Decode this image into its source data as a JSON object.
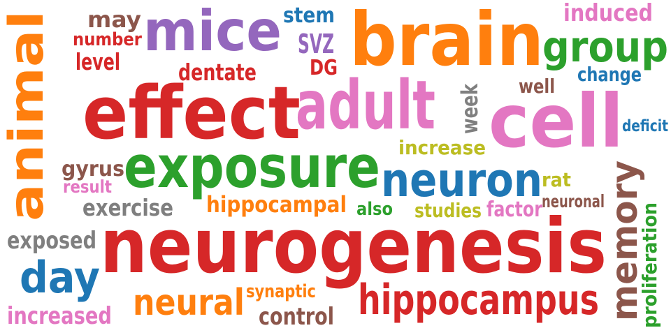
{
  "colors": {
    "red": "#d62728",
    "orange": "#ff7f0e",
    "green": "#2ca02c",
    "blue": "#1f77b4",
    "purple": "#9467bd",
    "pink": "#e377c2",
    "brown": "#8c564b",
    "gray": "#7f7f7f",
    "olive": "#bcbd22"
  },
  "words": [
    {
      "text": "neurogenesis",
      "color": "red"
    },
    {
      "text": "effect",
      "color": "red"
    },
    {
      "text": "brain",
      "color": "orange"
    },
    {
      "text": "cell",
      "color": "pink"
    },
    {
      "text": "exposure",
      "color": "green"
    },
    {
      "text": "adult",
      "color": "pink"
    },
    {
      "text": "mice",
      "color": "purple"
    },
    {
      "text": "animal",
      "color": "orange"
    },
    {
      "text": "neuron",
      "color": "blue"
    },
    {
      "text": "memory",
      "color": "brown"
    },
    {
      "text": "hippocampus",
      "color": "red"
    },
    {
      "text": "group",
      "color": "green"
    },
    {
      "text": "day",
      "color": "blue"
    },
    {
      "text": "neural",
      "color": "orange"
    },
    {
      "text": "increased",
      "color": "pink"
    },
    {
      "text": "exposed",
      "color": "gray"
    },
    {
      "text": "exercise",
      "color": "gray"
    },
    {
      "text": "hippocampal",
      "color": "orange"
    },
    {
      "text": "proliferation",
      "color": "green"
    },
    {
      "text": "control",
      "color": "brown"
    },
    {
      "text": "synaptic",
      "color": "orange"
    },
    {
      "text": "studies",
      "color": "olive"
    },
    {
      "text": "factor",
      "color": "pink"
    },
    {
      "text": "neuronal",
      "color": "brown"
    },
    {
      "text": "rat",
      "color": "olive"
    },
    {
      "text": "increase",
      "color": "olive"
    },
    {
      "text": "week",
      "color": "gray"
    },
    {
      "text": "deficit",
      "color": "blue"
    },
    {
      "text": "well",
      "color": "brown"
    },
    {
      "text": "change",
      "color": "blue"
    },
    {
      "text": "induced",
      "color": "pink"
    },
    {
      "text": "dentate",
      "color": "red"
    },
    {
      "text": "DG",
      "color": "red"
    },
    {
      "text": "SVZ",
      "color": "purple"
    },
    {
      "text": "stem",
      "color": "blue"
    },
    {
      "text": "may",
      "color": "brown"
    },
    {
      "text": "number",
      "color": "red"
    },
    {
      "text": "level",
      "color": "red"
    },
    {
      "text": "gyrus",
      "color": "brown"
    },
    {
      "text": "result",
      "color": "pink"
    },
    {
      "text": "also",
      "color": "green"
    }
  ]
}
